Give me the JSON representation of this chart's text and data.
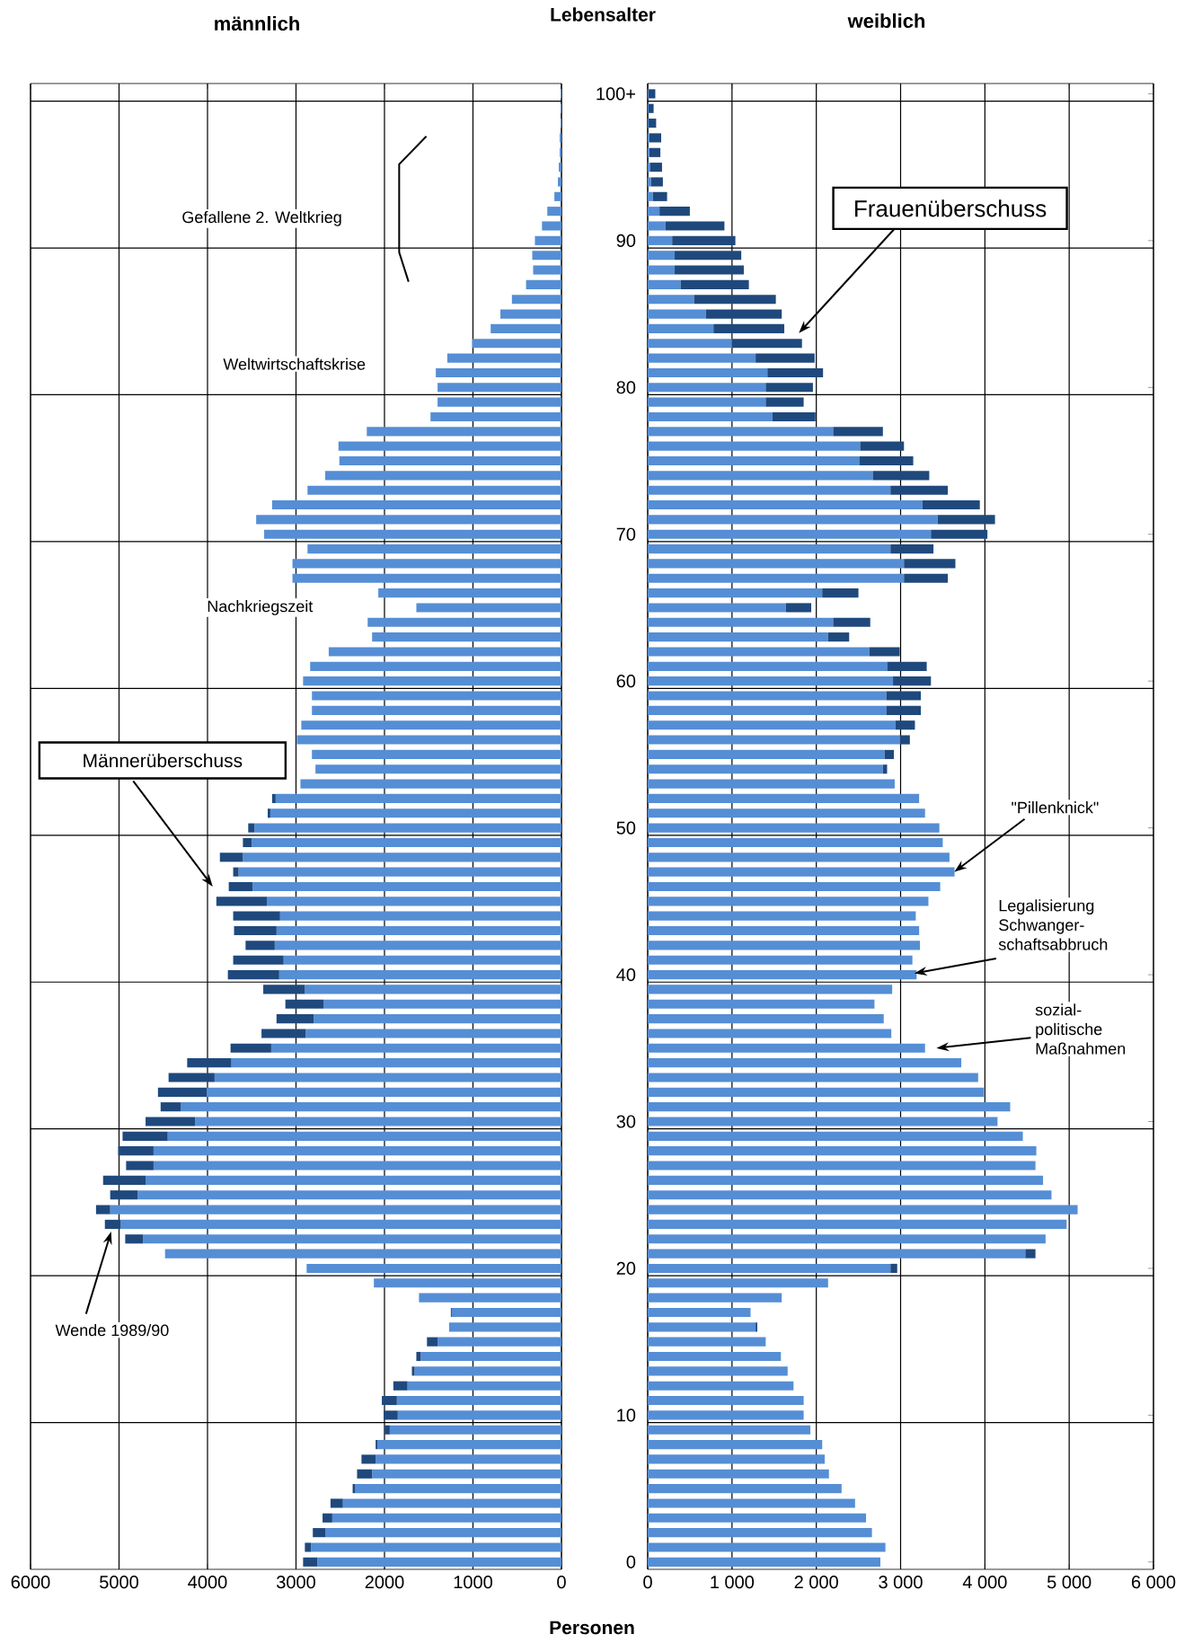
{
  "chart_data": [
    {
      "type": "bar",
      "title": "männlich",
      "orientation": "horizontal",
      "stacked": true,
      "grid": true,
      "tick_labels": "x",
      "xlim": [
        6000,
        0
      ],
      "xticks": [
        6000,
        5000,
        4000,
        3000,
        2000,
        1000,
        0
      ],
      "categories": [
        null,
        null,
        null,
        null,
        null,
        null,
        null,
        null,
        null,
        null,
        null,
        null,
        null,
        null,
        null,
        null,
        null,
        null,
        null,
        null,
        null,
        null,
        null,
        null,
        null,
        null,
        null,
        null,
        null,
        null,
        null,
        null,
        null,
        null,
        null,
        null,
        null,
        null,
        null,
        null,
        null,
        null,
        null,
        null,
        null,
        null,
        null,
        null,
        null,
        null,
        null,
        null,
        null,
        null,
        null,
        null,
        null,
        null,
        null,
        null,
        null,
        null,
        null,
        null,
        null,
        null,
        null,
        null,
        null,
        null,
        null,
        null,
        null,
        null,
        null,
        null,
        null,
        null,
        null,
        null,
        null,
        null,
        null,
        null,
        null,
        null,
        null,
        null,
        null,
        null,
        null,
        null,
        null,
        null,
        null,
        null,
        null,
        null,
        null,
        null,
        null
      ],
      "series": [
        {
          "color": "#558ed5",
          "values": [
            10,
            10,
            10,
            20,
            20,
            30,
            40,
            80,
            160,
            220,
            300,
            330,
            320,
            400,
            560,
            690,
            800,
            1010,
            1290,
            1420,
            1400,
            1400,
            1480,
            2200,
            2520,
            2510,
            2670,
            2870,
            3270,
            3450,
            3360,
            2870,
            3040,
            3040,
            2070,
            1640,
            2190,
            2140,
            2630,
            2840,
            2920,
            2820,
            2820,
            2940,
            2990,
            2820,
            2780,
            2950,
            3230,
            3290,
            3470,
            3500,
            3600,
            3650,
            3490,
            3330,
            3180,
            3220,
            3240,
            3140,
            3190,
            2900,
            2690,
            2800,
            2890,
            3280,
            3730,
            3920,
            4010,
            4300,
            4140,
            4450,
            4610,
            4610,
            4700,
            4790,
            5100,
            4980,
            4730,
            4480,
            2880,
            2120,
            1610,
            1240,
            1270,
            1400,
            1590,
            1660,
            1740,
            1860,
            1850,
            1940,
            2080,
            2100,
            2140,
            2330,
            2470,
            2590,
            2670,
            2830,
            2760
          ]
        },
        {
          "color": "#1f497d",
          "values": [
            null,
            null,
            null,
            null,
            null,
            null,
            null,
            null,
            null,
            null,
            null,
            null,
            null,
            null,
            null,
            null,
            null,
            null,
            null,
            null,
            null,
            null,
            null,
            null,
            null,
            null,
            null,
            null,
            null,
            null,
            null,
            null,
            null,
            null,
            null,
            null,
            null,
            null,
            null,
            null,
            null,
            null,
            null,
            null,
            null,
            null,
            null,
            null,
            40,
            30,
            70,
            100,
            260,
            60,
            270,
            570,
            530,
            480,
            330,
            570,
            580,
            470,
            430,
            420,
            500,
            460,
            500,
            520,
            550,
            230,
            560,
            510,
            400,
            310,
            480,
            310,
            160,
            180,
            200,
            null,
            null,
            null,
            null,
            10,
            null,
            120,
            50,
            30,
            160,
            170,
            160,
            60,
            20,
            160,
            170,
            30,
            140,
            110,
            140,
            70,
            160
          ]
        }
      ],
      "annotations": [
        "Gefallene 2. Weltkrieg",
        "Weltwirtschaftskrise",
        "Nachkriegszeit",
        "Männerüberschuss",
        "Wende 1989/90"
      ]
    },
    {
      "type": "bar",
      "title": "weiblich",
      "xlabel": "Personen",
      "ylabel": "Lebensalter",
      "orientation": "horizontal",
      "stacked": true,
      "grid": true,
      "xlim": [
        0,
        6000
      ],
      "xticks": [
        0,
        {
          "value": 1000,
          "label": "1 000"
        },
        {
          "value": 2000,
          "label": "2 000"
        },
        {
          "value": 3000,
          "label": "3 000"
        },
        {
          "value": 4000,
          "label": "4 000"
        },
        {
          "value": 5000,
          "label": "5 000"
        },
        {
          "value": 6000,
          "label": "6 000"
        }
      ],
      "categories": [
        "100+",
        null,
        null,
        null,
        null,
        null,
        null,
        null,
        null,
        null,
        "90",
        null,
        null,
        null,
        null,
        null,
        null,
        null,
        null,
        null,
        "80",
        null,
        null,
        null,
        null,
        null,
        null,
        null,
        null,
        null,
        "70",
        null,
        null,
        null,
        null,
        null,
        null,
        null,
        null,
        null,
        "60",
        null,
        null,
        null,
        null,
        null,
        null,
        null,
        null,
        null,
        "50",
        null,
        null,
        null,
        null,
        null,
        null,
        null,
        null,
        null,
        "40",
        null,
        null,
        null,
        null,
        null,
        null,
        null,
        null,
        null,
        "30",
        null,
        null,
        null,
        null,
        null,
        null,
        null,
        null,
        null,
        "20",
        null,
        null,
        null,
        null,
        null,
        null,
        null,
        null,
        null,
        "10",
        null,
        null,
        null,
        null,
        null,
        null,
        null,
        null,
        null,
        "0"
      ],
      "series": [
        {
          "color": "#558ed5",
          "values": [
            10,
            10,
            10,
            20,
            20,
            30,
            40,
            60,
            140,
            210,
            290,
            320,
            320,
            390,
            550,
            690,
            780,
            1000,
            1280,
            1420,
            1400,
            1400,
            1480,
            2200,
            2520,
            2510,
            2670,
            2880,
            3260,
            3440,
            3360,
            2880,
            3040,
            3040,
            2070,
            1640,
            2200,
            2140,
            2630,
            2840,
            2910,
            2830,
            2830,
            2940,
            2990,
            2810,
            2790,
            2930,
            3220,
            3290,
            3460,
            3500,
            3580,
            3640,
            3470,
            3330,
            3180,
            3220,
            3230,
            3140,
            3190,
            2900,
            2690,
            2800,
            2890,
            3290,
            3720,
            3920,
            3990,
            4300,
            4150,
            4450,
            4610,
            4600,
            4690,
            4790,
            5100,
            4970,
            4720,
            4480,
            2880,
            2140,
            1590,
            1220,
            1280,
            1400,
            1580,
            1660,
            1730,
            1850,
            1850,
            1930,
            2070,
            2100,
            2150,
            2300,
            2460,
            2590,
            2660,
            2820,
            2760
          ]
        },
        {
          "color": "#1f497d",
          "values": [
            80,
            60,
            90,
            140,
            130,
            140,
            140,
            170,
            360,
            700,
            750,
            790,
            820,
            810,
            970,
            900,
            840,
            830,
            700,
            660,
            560,
            450,
            510,
            590,
            520,
            640,
            670,
            680,
            680,
            680,
            670,
            510,
            610,
            520,
            430,
            300,
            440,
            250,
            360,
            470,
            450,
            410,
            410,
            230,
            120,
            110,
            50,
            null,
            null,
            null,
            null,
            null,
            null,
            null,
            null,
            null,
            null,
            null,
            null,
            null,
            null,
            null,
            null,
            null,
            null,
            null,
            null,
            null,
            null,
            null,
            null,
            null,
            null,
            null,
            null,
            null,
            null,
            null,
            null,
            120,
            80,
            null,
            null,
            null,
            20,
            null,
            null,
            null,
            null,
            null,
            null,
            null,
            null,
            null,
            null,
            null,
            null,
            null,
            null,
            null,
            null
          ]
        }
      ],
      "annotations": [
        "Frauenüberschuss",
        "\"Pillenknick\"",
        "Legalisierung Schwanger-schaftsabbruch",
        "sozial-politische Maßnahmen"
      ]
    }
  ]
}
